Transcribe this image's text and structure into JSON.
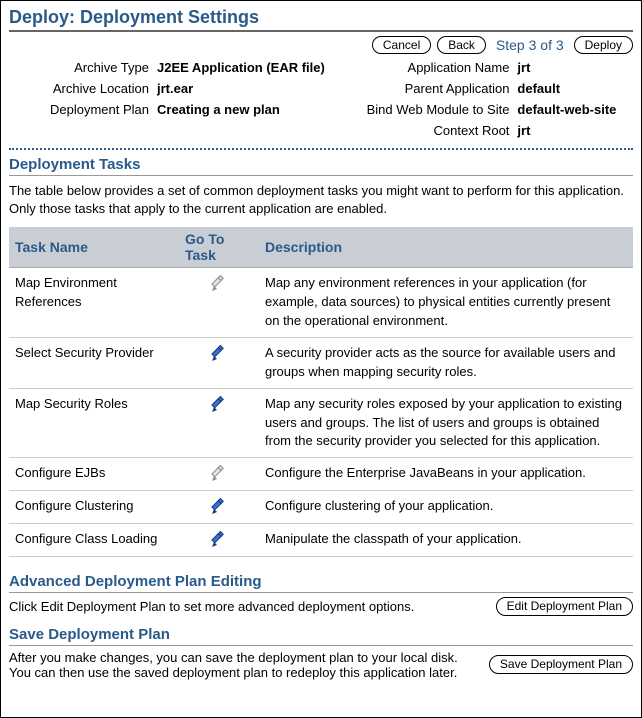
{
  "colors": {
    "accent": "#2a5a8a",
    "header_bg": "#c9ced4",
    "pencil_enabled_fill": "#3a6fd8",
    "pencil_enabled_stroke": "#163a7a",
    "pencil_disabled_fill": "#e4e4e4",
    "pencil_disabled_stroke": "#8a8a8a"
  },
  "title": "Deploy: Deployment Settings",
  "topbar": {
    "cancel": "Cancel",
    "back": "Back",
    "step": "Step 3 of 3",
    "deploy": "Deploy"
  },
  "meta": {
    "archive_type_label": "Archive Type",
    "archive_type_value": "J2EE Application (EAR file)",
    "archive_location_label": "Archive Location",
    "archive_location_value": "jrt.ear",
    "deployment_plan_label": "Deployment Plan",
    "deployment_plan_value": "Creating a new plan",
    "application_name_label": "Application Name",
    "application_name_value": "jrt",
    "parent_application_label": "Parent Application",
    "parent_application_value": "default",
    "bind_web_module_label": "Bind Web Module to Site",
    "bind_web_module_value": "default-web-site",
    "context_root_label": "Context Root",
    "context_root_value": "jrt"
  },
  "tasks_section": {
    "heading": "Deployment Tasks",
    "intro": "The table below provides a set of common deployment tasks you might want to perform for this application. Only those tasks that apply to the current application are  enabled.",
    "columns": {
      "task_name": "Task Name",
      "go_to_task": "Go To Task",
      "description": "Description"
    },
    "rows": [
      {
        "name": "Map Environment References",
        "enabled": false,
        "description": "Map any environment references in your application (for example, data sources) to physical entities currently present on the operational environment."
      },
      {
        "name": "Select Security Provider",
        "enabled": true,
        "description": "A security provider acts as the source for available users and groups when mapping security roles."
      },
      {
        "name": "Map Security Roles",
        "enabled": true,
        "description": "Map any security roles exposed by your application to existing users and groups. The list of users and groups is obtained from the security provider you selected for this application."
      },
      {
        "name": "Configure EJBs",
        "enabled": false,
        "description": "Configure the Enterprise JavaBeans in your application."
      },
      {
        "name": "Configure Clustering",
        "enabled": true,
        "description": "Configure clustering of your application."
      },
      {
        "name": "Configure Class Loading",
        "enabled": true,
        "description": "Manipulate the classpath of your application."
      }
    ]
  },
  "advanced_section": {
    "heading": "Advanced Deployment Plan Editing",
    "text": "Click Edit Deployment Plan to set more advanced deployment options.",
    "button": "Edit Deployment Plan"
  },
  "save_section": {
    "heading": "Save Deployment Plan",
    "text": "After you make changes, you can save the deployment plan to your local disk. You can then use the saved deployment plan to redeploy this application later.",
    "button": "Save Deployment Plan"
  }
}
